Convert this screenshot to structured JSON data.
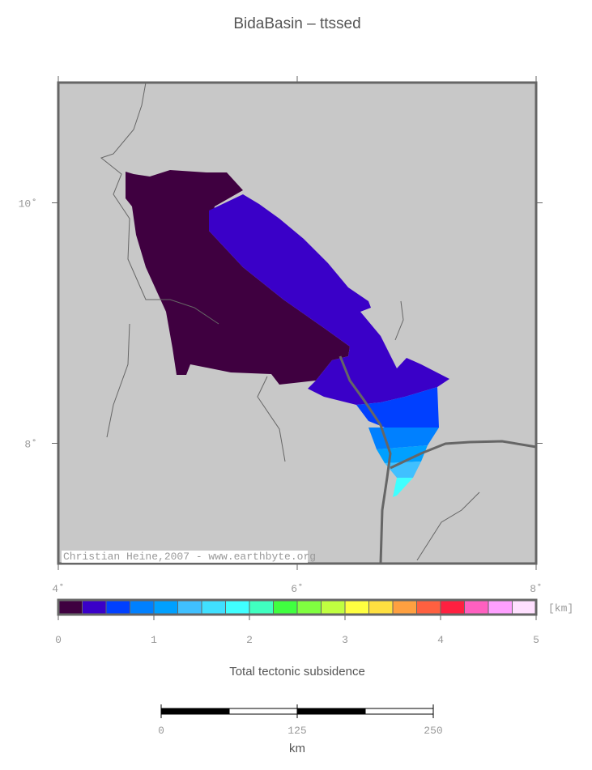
{
  "title": "BidaBasin – ttssed",
  "map": {
    "xlim": [
      4,
      8
    ],
    "ylim": [
      7,
      11
    ],
    "xticks": [
      {
        "value": 4,
        "label": "4˚"
      },
      {
        "value": 6,
        "label": "6˚"
      },
      {
        "value": 8,
        "label": "8˚"
      }
    ],
    "yticks": [
      {
        "value": 8,
        "label": "8˚"
      },
      {
        "value": 10,
        "label": "10˚"
      }
    ],
    "credit": "Christian Heine,2007 - www.earthbyte.org"
  },
  "colorbar": {
    "range": [
      0,
      5
    ],
    "ticks": [
      0,
      1,
      2,
      3,
      4,
      5
    ],
    "unit": "[km]",
    "colors": [
      "#3f0040",
      "#3a00c8",
      "#0040ff",
      "#0080ff",
      "#00a0ff",
      "#40c0ff",
      "#40e0ff",
      "#40ffff",
      "#40ffc0",
      "#40ff40",
      "#80ff40",
      "#c0ff40",
      "#ffff40",
      "#ffe040",
      "#ffa040",
      "#ff6040",
      "#ff2040",
      "#ff60c0",
      "#ffa0ff",
      "#ffe0ff"
    ],
    "caption": "Total tectonic subsidence"
  },
  "scalebar": {
    "range": [
      0,
      250
    ],
    "ticks": [
      0,
      125,
      250
    ],
    "unit": "km"
  }
}
